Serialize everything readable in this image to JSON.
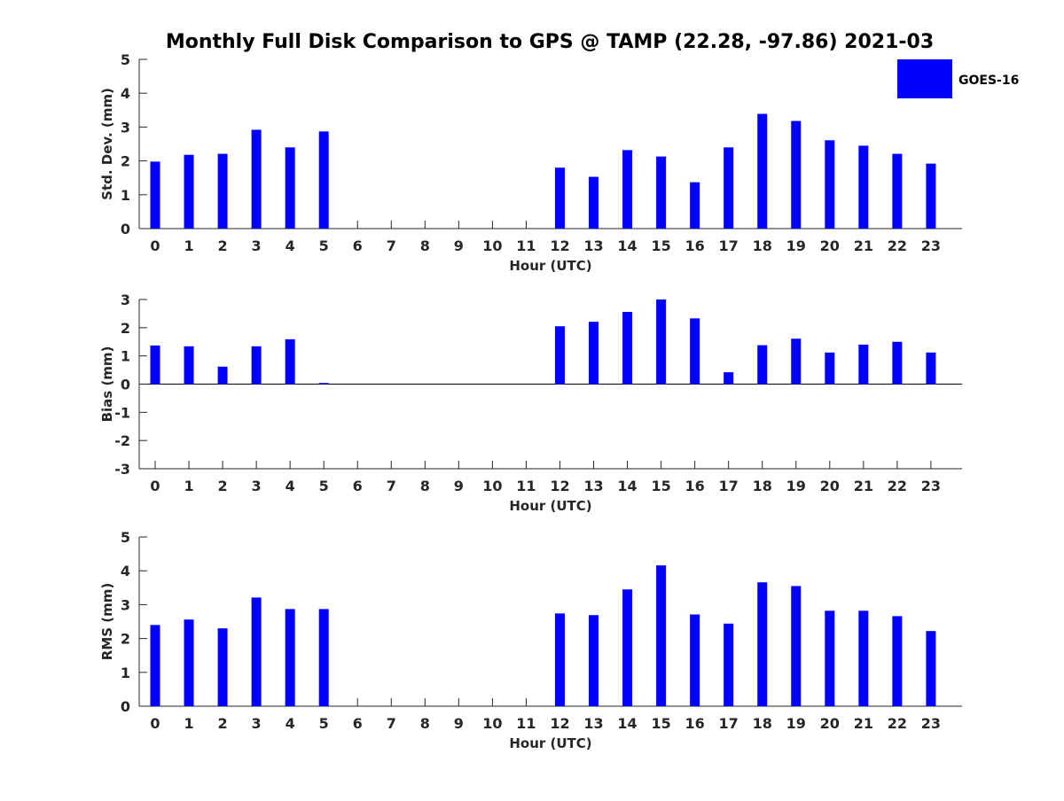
{
  "figure_title": "Monthly Full Disk Comparison to GPS @ TAMP (22.28, -97.86) 2021-03",
  "legend": {
    "label": "GOES-16",
    "placement": "top-right"
  },
  "colors": {
    "bar": "#0000ff",
    "axis": "#262626",
    "text": "#262626",
    "background": "#ffffff"
  },
  "chart_data": [
    {
      "type": "bar",
      "title": "Monthly Full Disk Comparison to GPS @ TAMP (22.28, -97.86) 2021-03",
      "xlabel": "Hour (UTC)",
      "ylabel": "Std. Dev. (mm)",
      "ylim": [
        0,
        5
      ],
      "yticks": [
        0,
        1,
        2,
        3,
        4,
        5
      ],
      "categories": [
        "0",
        "1",
        "2",
        "3",
        "4",
        "5",
        "6",
        "7",
        "8",
        "9",
        "10",
        "11",
        "12",
        "13",
        "14",
        "15",
        "16",
        "17",
        "18",
        "19",
        "20",
        "21",
        "22",
        "23"
      ],
      "series": [
        {
          "name": "GOES-16",
          "values": [
            1.98,
            2.18,
            2.21,
            2.92,
            2.4,
            2.87,
            null,
            null,
            null,
            null,
            null,
            null,
            1.8,
            1.53,
            2.32,
            2.13,
            1.37,
            2.4,
            3.39,
            3.18,
            2.61,
            2.45,
            2.21,
            1.92
          ]
        }
      ],
      "grid": false
    },
    {
      "type": "bar",
      "title": "",
      "xlabel": "Hour (UTC)",
      "ylabel": "Bias (mm)",
      "ylim": [
        -3,
        3
      ],
      "yticks": [
        -3,
        -2,
        -1,
        0,
        1,
        2,
        3
      ],
      "categories": [
        "0",
        "1",
        "2",
        "3",
        "4",
        "5",
        "6",
        "7",
        "8",
        "9",
        "10",
        "11",
        "12",
        "13",
        "14",
        "15",
        "16",
        "17",
        "18",
        "19",
        "20",
        "21",
        "22",
        "23"
      ],
      "series": [
        {
          "name": "GOES-16",
          "values": [
            1.37,
            1.34,
            0.62,
            1.34,
            1.59,
            0.04,
            null,
            null,
            null,
            null,
            null,
            null,
            2.05,
            2.21,
            2.56,
            3.0,
            2.33,
            0.42,
            1.38,
            1.61,
            1.12,
            1.4,
            1.5,
            1.12
          ]
        }
      ],
      "grid": false
    },
    {
      "type": "bar",
      "title": "",
      "xlabel": "Hour (UTC)",
      "ylabel": "RMS (mm)",
      "ylim": [
        0,
        5
      ],
      "yticks": [
        0,
        1,
        2,
        3,
        4,
        5
      ],
      "categories": [
        "0",
        "1",
        "2",
        "3",
        "4",
        "5",
        "6",
        "7",
        "8",
        "9",
        "10",
        "11",
        "12",
        "13",
        "14",
        "15",
        "16",
        "17",
        "18",
        "19",
        "20",
        "21",
        "22",
        "23"
      ],
      "series": [
        {
          "name": "GOES-16",
          "values": [
            2.4,
            2.56,
            2.3,
            3.21,
            2.87,
            2.87,
            null,
            null,
            null,
            null,
            null,
            null,
            2.74,
            2.69,
            3.45,
            4.16,
            2.71,
            2.44,
            3.66,
            3.55,
            2.82,
            2.82,
            2.66,
            2.22
          ]
        }
      ],
      "grid": false
    }
  ]
}
